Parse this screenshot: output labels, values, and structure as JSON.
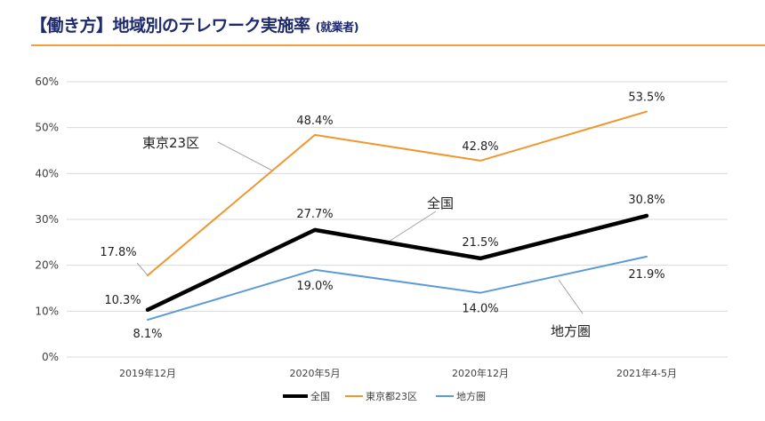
{
  "header": {
    "title_main": "【働き方】地域別のテレワーク実施率",
    "title_sub": "(就業者)",
    "rule_color": "#f0a040",
    "title_color": "#1f2a6b"
  },
  "chart_data": {
    "type": "line",
    "title": "【働き方】地域別のテレワーク実施率 (就業者)",
    "xlabel": "",
    "ylabel": "",
    "categories": [
      "2019年12月",
      "2020年5月",
      "2020年12月",
      "2021年4-5月"
    ],
    "ylim": [
      0,
      60
    ],
    "yticks": [
      0,
      10,
      20,
      30,
      40,
      50,
      60
    ],
    "ytick_labels": [
      "0%",
      "10%",
      "20%",
      "30%",
      "40%",
      "50%",
      "60%"
    ],
    "grid": true,
    "legend_position": "bottom",
    "series": [
      {
        "name": "全国",
        "color": "#000000",
        "values": [
          10.3,
          27.7,
          21.5,
          30.8
        ],
        "labels": [
          "10.3%",
          "27.7%",
          "21.5%",
          "30.8%"
        ],
        "callout": "全国"
      },
      {
        "name": "東京都23区",
        "color": "#f0962e",
        "values": [
          17.8,
          48.4,
          42.8,
          53.5
        ],
        "labels": [
          "17.8%",
          "48.4%",
          "42.8%",
          "53.5%"
        ],
        "callout": "東京23区"
      },
      {
        "name": "地方圏",
        "color": "#5b9bd5",
        "values": [
          8.1,
          19.0,
          14.0,
          21.9
        ],
        "labels": [
          "8.1%",
          "19.0%",
          "14.0%",
          "21.9%"
        ],
        "callout": "地方圏"
      }
    ]
  }
}
